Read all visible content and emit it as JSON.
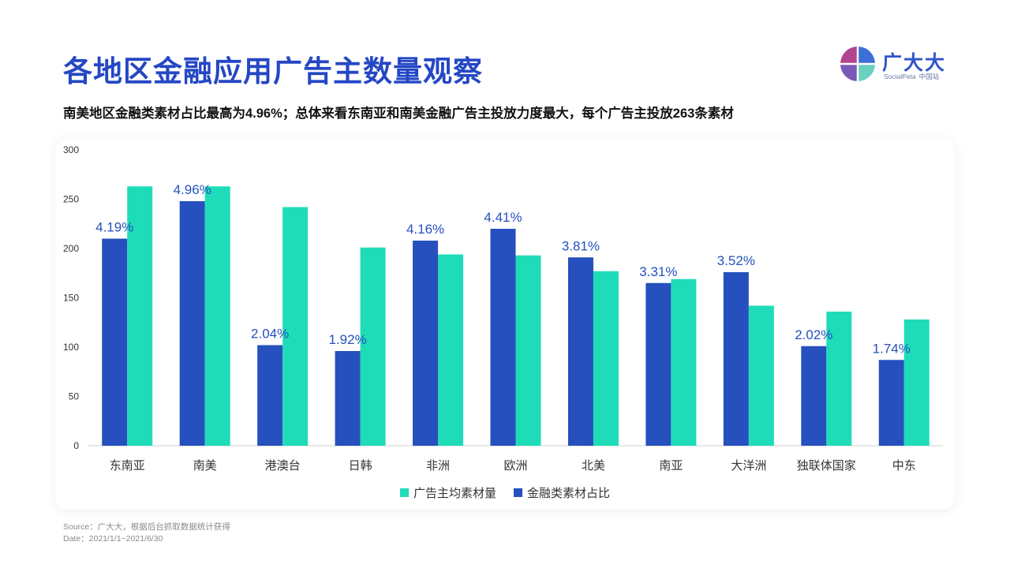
{
  "page": {
    "title": "各地区金融应用广告主数量观察",
    "subtitle": "南美地区金融类素材占比最高为4.96%；总体来看东南亚和南美金融广告主投放力度最大，每个广告主投放263条素材",
    "source": "Source：广大大，根据后台抓取数据统计获得",
    "date": "Date：2021/1/1~2021/6/30"
  },
  "logo": {
    "name_cn": "广大大",
    "name_en": "SocialPeta",
    "region": "中国站",
    "colors": [
      "#3d6fd8",
      "#b2448f",
      "#6ad0c0",
      "#7a5ab8"
    ]
  },
  "colors": {
    "blue": "#2550bd",
    "teal": "#1fdcb8",
    "title": "#2447c4",
    "label": "#2550bd"
  },
  "chart_data": {
    "type": "bar",
    "title": "",
    "xlabel": "",
    "ylabel": "",
    "ylim": [
      0,
      300
    ],
    "yticks": [
      0,
      50,
      100,
      150,
      200,
      250,
      300
    ],
    "grid": false,
    "legend_position": "bottom-center",
    "categories": [
      "东南亚",
      "南美",
      "港澳台",
      "日韩",
      "非洲",
      "欧洲",
      "北美",
      "南亚",
      "大洋洲",
      "独联体国家",
      "中东"
    ],
    "series": [
      {
        "name": "金融类素材占比",
        "color": "#2550bd",
        "values": [
          210,
          248,
          102,
          96,
          208,
          220,
          191,
          165,
          176,
          101,
          87
        ],
        "labels": [
          "4.19%",
          "4.96%",
          "2.04%",
          "1.92%",
          "4.16%",
          "4.41%",
          "3.81%",
          "3.31%",
          "3.52%",
          "2.02%",
          "1.74%"
        ]
      },
      {
        "name": "广告主均素材量",
        "color": "#1fdcb8",
        "values": [
          263,
          263,
          242,
          201,
          194,
          193,
          177,
          169,
          142,
          136,
          128
        ]
      }
    ],
    "legend_order": [
      "广告主均素材量",
      "金融类素材占比"
    ]
  }
}
